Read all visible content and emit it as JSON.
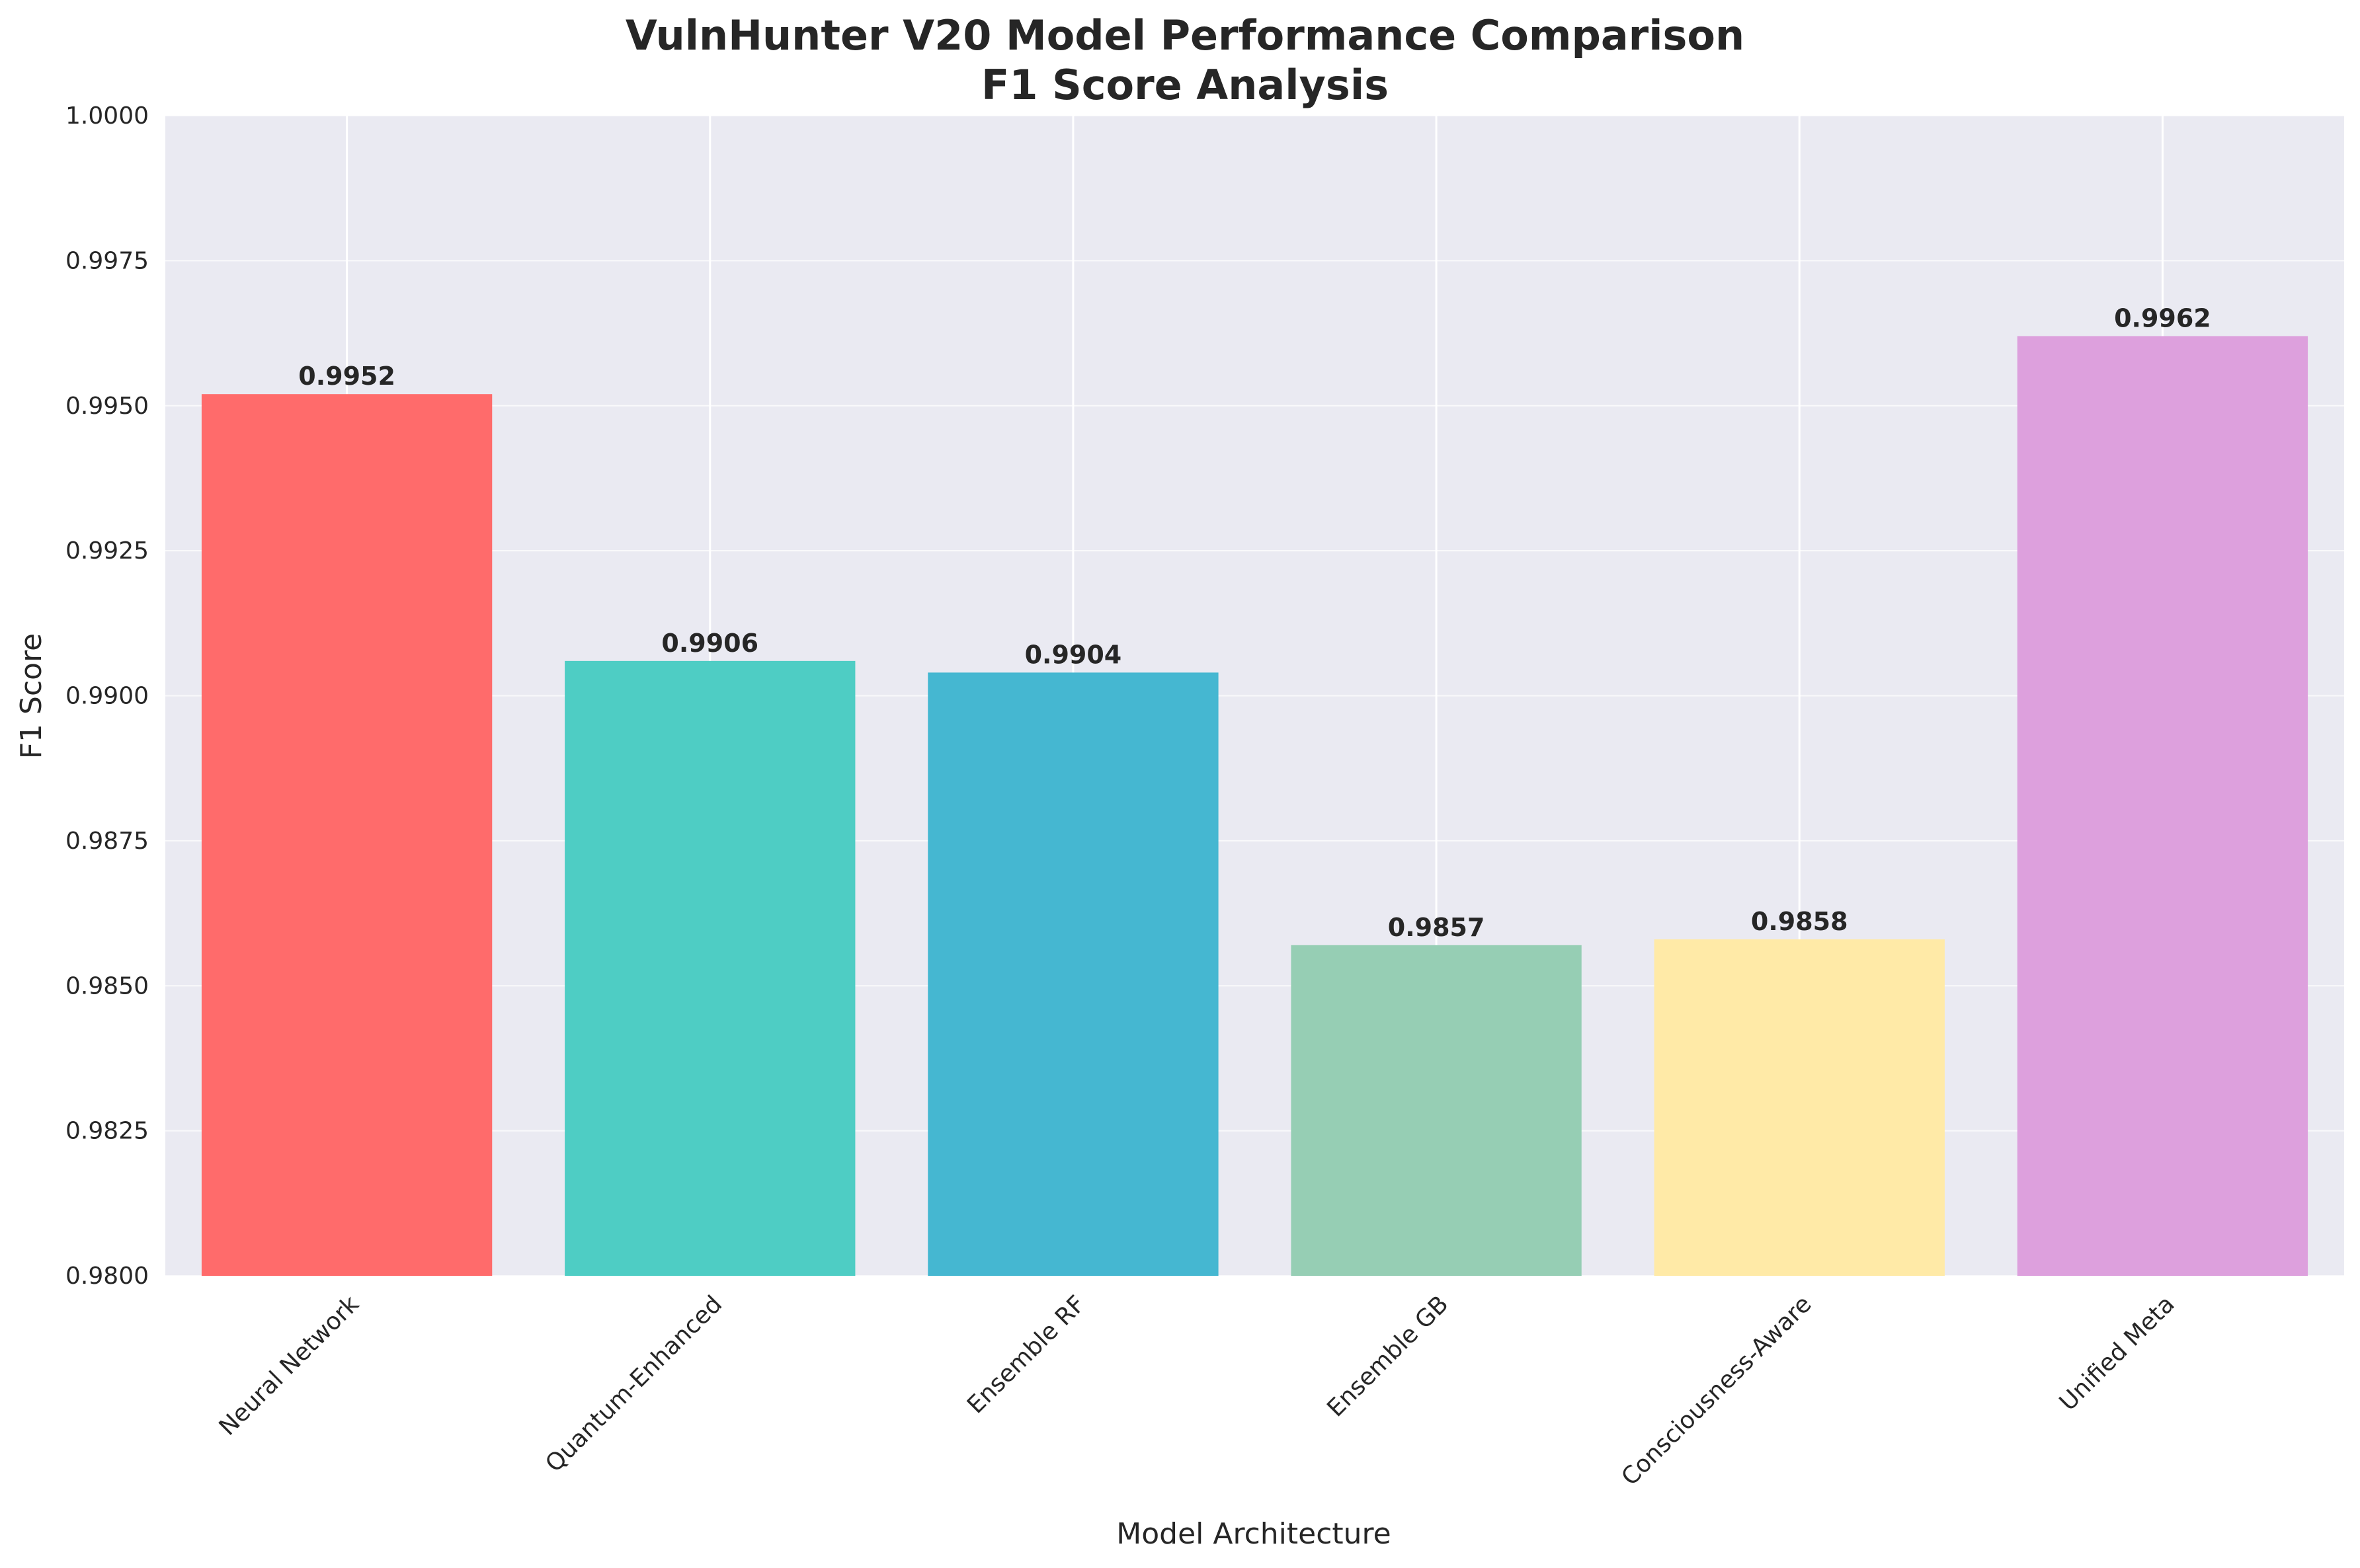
{
  "chart_data": {
    "type": "bar",
    "title_line1": "VulnHunter V20 Model Performance Comparison",
    "title_line2": "F1 Score Analysis",
    "xlabel": "Model Architecture",
    "ylabel": "F1 Score",
    "ylim": [
      0.98,
      1.0
    ],
    "yticks": [
      0.98,
      0.9825,
      0.985,
      0.9875,
      0.99,
      0.9925,
      0.995,
      0.9975,
      1.0
    ],
    "ytick_labels": [
      "0.9800",
      "0.9825",
      "0.9850",
      "0.9875",
      "0.9900",
      "0.9925",
      "0.9950",
      "0.9975",
      "1.0000"
    ],
    "categories": [
      "Neural Network",
      "Quantum-Enhanced",
      "Ensemble RF",
      "Ensemble GB",
      "Consciousness-Aware",
      "Unified Meta"
    ],
    "values": [
      0.9952,
      0.9906,
      0.9904,
      0.9857,
      0.9858,
      0.9962
    ],
    "value_labels": [
      "0.9952",
      "0.9906",
      "0.9904",
      "0.9857",
      "0.9858",
      "0.9962"
    ],
    "colors": [
      "#FF6B6B",
      "#4ECDC4",
      "#45B7D1",
      "#96CEB4",
      "#FFEAA7",
      "#DDA0DD"
    ],
    "grid": true,
    "background": "#EAEAF2"
  }
}
